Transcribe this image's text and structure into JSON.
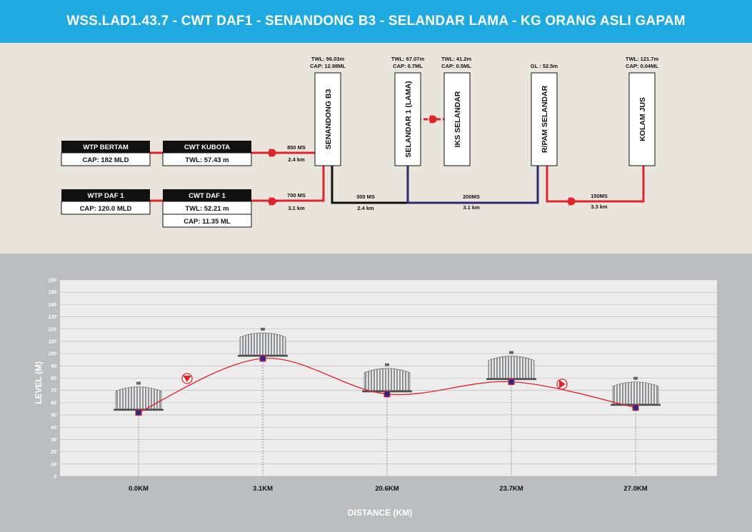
{
  "title": "WSS.LAD1.43.7 - CWT DAF1 - SENANDONG B3 - SELANDAR LAMA - KG ORANG ASLI GAPAM",
  "colors": {
    "header": "#1ea9e1",
    "schematic_bg": "#e9e5dc",
    "profile_bg": "#bcbdc0",
    "pipe_red": "#e0242a",
    "pipe_navy": "#2a2a6e",
    "pipe_black": "#111111"
  },
  "sources": [
    {
      "name": "WTP BERTAM",
      "cap": "CAP: 182 MLD"
    },
    {
      "name": "WTP DAF 1",
      "cap": "CAP: 120.0 MLD"
    }
  ],
  "reservoirs": [
    {
      "name": "CWT KUBOTA",
      "twl": "TWL: 57.43 m"
    },
    {
      "name": "CWT DAF 1",
      "twl": "TWL: 52.21 m",
      "cap": "CAP: 11.35 ML"
    }
  ],
  "towers": [
    {
      "name": "SENANDONG B3",
      "info1": "TWL: 96.03m",
      "info2": "CAP: 12.98ML"
    },
    {
      "name": "SELANDAR 1 (LAMA)",
      "info1": "TWL: 67.07m",
      "info2": "CAP: 0.7ML"
    },
    {
      "name": "IKS SELANDAR",
      "info1": "TWL: 41.2m",
      "info2": "CAP: 0.5ML"
    },
    {
      "name": "R/PAM SELANDAR",
      "info1": "GL : 52.5m",
      "info2": ""
    },
    {
      "name": "KOLAM JUS",
      "info1": "TWL: 121.7m",
      "info2": "CAP: 0.04ML"
    }
  ],
  "pipes": [
    {
      "size": "850 MS",
      "length": "2.4 km"
    },
    {
      "size": "700 MS",
      "length": "3.1 km"
    },
    {
      "size": "300 MS",
      "length": "2.4 km"
    },
    {
      "size": "200MS",
      "length": "3.1 km"
    },
    {
      "size": "150MS",
      "length": "3.3 km"
    }
  ],
  "chart_data": {
    "type": "line",
    "title": "",
    "xlabel": "DISTANCE (KM)",
    "ylabel": "LEVEL (M)",
    "ylim": [
      0,
      160
    ],
    "y_ticks": [
      "0",
      "10",
      "20",
      "30",
      "40",
      "50",
      "60",
      "70",
      "80",
      "90",
      "100",
      "110",
      "120",
      "130",
      "140",
      "150",
      "160"
    ],
    "categories": [
      "0.0KM",
      "3.1KM",
      "20.6KM",
      "23.7KM",
      "27.0KM"
    ],
    "values": [
      52,
      96,
      67,
      77,
      56
    ],
    "grid": true
  }
}
